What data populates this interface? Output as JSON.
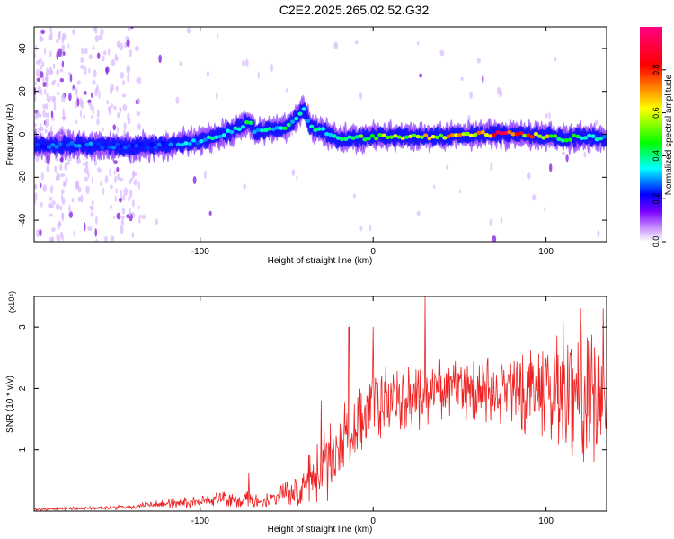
{
  "title": "C2E2.2025.265.02.52.G32",
  "chart_data": [
    {
      "type": "heatmap",
      "name": "spectrogram",
      "xlabel": "Height of straight line (km)",
      "ylabel": "Frequency (Hz)",
      "xlim": [
        -196,
        135
      ],
      "ylim": [
        -50,
        50
      ],
      "xticks": [
        -100,
        0,
        100
      ],
      "yticks": [
        -40,
        -20,
        0,
        20,
        40
      ],
      "colorbar": {
        "label": "Normalized spectral amplitude",
        "range": [
          0,
          1
        ],
        "ticks": [
          "0.0",
          "0.2",
          "0.4",
          "0.6",
          "0.8"
        ],
        "tick_values": [
          0.0,
          0.2,
          0.4,
          0.6,
          0.8
        ],
        "colors": [
          "#ffffff",
          "#7b00ff",
          "#0000ff",
          "#00ffff",
          "#00ff00",
          "#ffff00",
          "#ff0000",
          "#ff0080"
        ]
      },
      "ridge": {
        "x": [
          -196,
          -180,
          -160,
          -140,
          -120,
          -100,
          -90,
          -80,
          -72,
          -68,
          -60,
          -50,
          -44,
          -40,
          -36,
          -30,
          -20,
          -10,
          0,
          20,
          40,
          60,
          80,
          100,
          110,
          120,
          135
        ],
        "y": [
          -5,
          -5,
          -5,
          -6,
          -5,
          -3,
          -1,
          2,
          6,
          1,
          2,
          3,
          8,
          12,
          3,
          2,
          -2,
          -2,
          -1,
          -1,
          -1,
          0,
          0,
          -1,
          -2,
          -1,
          -2
        ],
        "amplitude": [
          0.3,
          0.35,
          0.35,
          0.3,
          0.35,
          0.4,
          0.45,
          0.45,
          0.5,
          0.45,
          0.45,
          0.5,
          0.45,
          0.4,
          0.45,
          0.45,
          0.45,
          0.55,
          0.6,
          0.65,
          0.7,
          0.8,
          0.85,
          0.7,
          0.55,
          0.5,
          0.4
        ]
      }
    },
    {
      "type": "line",
      "name": "snr",
      "xlabel": "Height of straight line (km)",
      "ylabel": "SNR (10 * v/v)",
      "y_scale_label": "(x10⁴)",
      "xlim": [
        -196,
        135
      ],
      "ylim": [
        0,
        3.5
      ],
      "xticks": [
        -100,
        0,
        100
      ],
      "yticks": [
        1,
        2,
        3
      ],
      "series": [
        {
          "name": "SNR",
          "color": "#ee2222",
          "x": [
            -196,
            -180,
            -160,
            -140,
            -130,
            -120,
            -100,
            -90,
            -80,
            -72,
            -70,
            -60,
            -50,
            -45,
            -40,
            -35,
            -30,
            -25,
            -20,
            -15,
            -10,
            -5,
            0,
            10,
            20,
            30,
            40,
            50,
            60,
            70,
            80,
            90,
            100,
            110,
            120,
            135
          ],
          "y_mean": [
            0.03,
            0.04,
            0.05,
            0.07,
            0.1,
            0.12,
            0.15,
            0.2,
            0.18,
            0.25,
            0.15,
            0.2,
            0.3,
            0.3,
            0.45,
            0.55,
            0.7,
            0.85,
            1.0,
            1.2,
            1.4,
            1.55,
            1.7,
            1.8,
            1.85,
            1.9,
            2.0,
            2.0,
            1.9,
            1.95,
            2.0,
            1.9,
            2.0,
            1.95,
            1.9,
            1.8
          ],
          "y_spread": [
            0.02,
            0.03,
            0.03,
            0.05,
            0.06,
            0.08,
            0.1,
            0.12,
            0.12,
            0.2,
            0.1,
            0.12,
            0.2,
            0.25,
            0.35,
            0.5,
            0.6,
            0.7,
            0.75,
            0.8,
            0.8,
            0.8,
            0.7,
            0.6,
            0.5,
            0.6,
            0.5,
            0.5,
            0.6,
            0.6,
            0.6,
            0.7,
            0.8,
            1.0,
            1.1,
            1.0
          ],
          "peaks": [
            [
              -72,
              0.62
            ],
            [
              -30,
              1.8
            ],
            [
              -14,
              3.0
            ],
            [
              0,
              3.0
            ],
            [
              30,
              3.5
            ],
            [
              98,
              2.6
            ],
            [
              110,
              3.1
            ],
            [
              120,
              3.3
            ],
            [
              133,
              3.3
            ]
          ]
        }
      ]
    }
  ]
}
